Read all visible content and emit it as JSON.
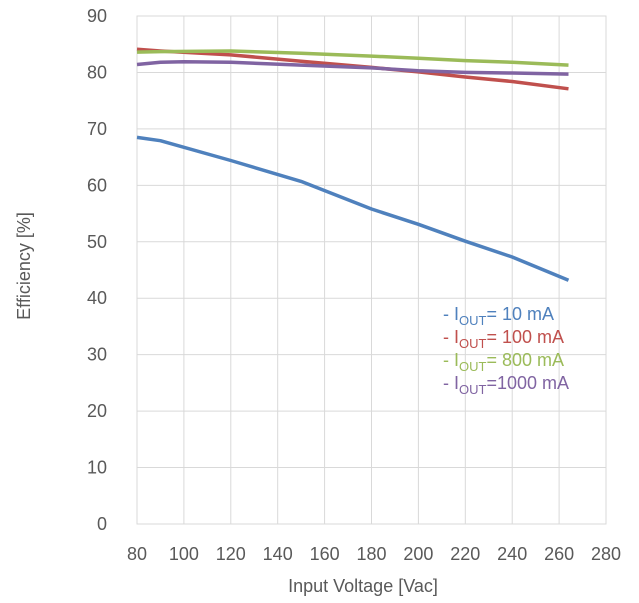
{
  "chart_data": {
    "type": "line",
    "title": "",
    "xlabel": "Input Voltage [Vac]",
    "ylabel": "Efficiency [%]",
    "xlim": [
      80,
      280
    ],
    "ylim": [
      0,
      90
    ],
    "x_ticks": [
      "80",
      "100",
      "120",
      "140",
      "160",
      "180",
      "200",
      "220",
      "240",
      "260",
      "280"
    ],
    "y_ticks": [
      "0",
      "10",
      "20",
      "30",
      "40",
      "50",
      "60",
      "70",
      "80",
      "90"
    ],
    "grid": true,
    "legend_position": "lower-right",
    "series": [
      {
        "name": "I_OUT= 10 mA",
        "legend": {
          "dash": "-",
          "prefix": "I",
          "sub": "OUT",
          "suffix": "=  10 mA"
        },
        "color": "#4F81BD",
        "x": [
          80,
          90,
          120,
          150,
          180,
          200,
          220,
          240,
          264
        ],
        "y": [
          68.5,
          67.9,
          64.4,
          60.7,
          55.8,
          53.1,
          50.1,
          47.3,
          43.2
        ]
      },
      {
        "name": "I_OUT= 100 mA",
        "legend": {
          "dash": "-",
          "prefix": "I",
          "sub": "OUT",
          "suffix": "= 100 mA"
        },
        "color": "#C0504D",
        "x": [
          80,
          90,
          120,
          150,
          180,
          200,
          220,
          240,
          264
        ],
        "y": [
          84.1,
          83.8,
          83.1,
          82.0,
          80.9,
          80.1,
          79.2,
          78.4,
          77.1
        ]
      },
      {
        "name": "I_OUT= 800 mA",
        "legend": {
          "dash": "-",
          "prefix": "I",
          "sub": "OUT",
          "suffix": "= 800 mA"
        },
        "color": "#9BBB59",
        "x": [
          80,
          90,
          120,
          150,
          180,
          200,
          220,
          240,
          264
        ],
        "y": [
          83.6,
          83.7,
          83.8,
          83.4,
          82.9,
          82.5,
          82.1,
          81.8,
          81.3
        ]
      },
      {
        "name": "I_OUT=1000 mA",
        "legend": {
          "dash": "-",
          "prefix": "I",
          "sub": "OUT",
          "suffix": "=1000 mA"
        },
        "color": "#8064A2",
        "x": [
          80,
          90,
          100,
          120,
          150,
          180,
          200,
          220,
          240,
          264
        ],
        "y": [
          81.4,
          81.8,
          81.9,
          81.8,
          81.3,
          80.8,
          80.3,
          80.0,
          79.9,
          79.7
        ]
      }
    ]
  }
}
